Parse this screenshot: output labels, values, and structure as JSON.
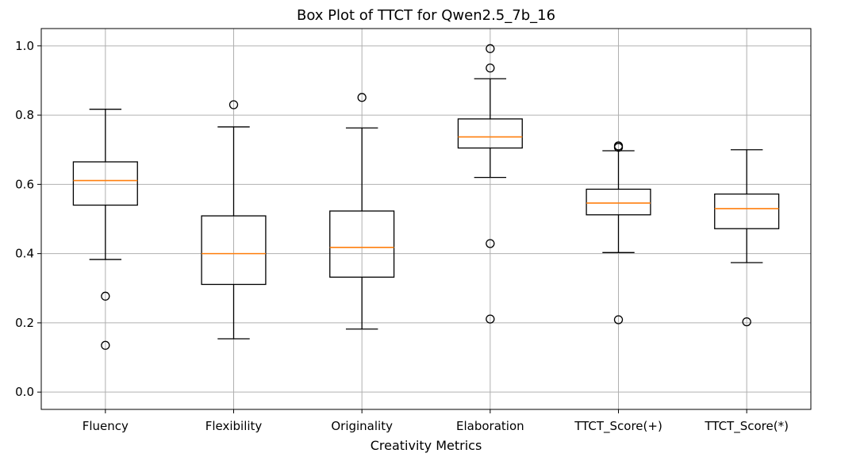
{
  "chart_data": {
    "type": "box",
    "title": "Box Plot of TTCT for Qwen2.5_7b_16",
    "xlabel": "Creativity Metrics",
    "ylabel": "",
    "ylim": [
      -0.05,
      1.05
    ],
    "yticks": [
      0.0,
      0.2,
      0.4,
      0.6,
      0.8,
      1.0
    ],
    "ytick_labels": [
      "0.0",
      "0.2",
      "0.4",
      "0.6",
      "0.8",
      "1.0"
    ],
    "grid": true,
    "categories": [
      "Fluency",
      "Flexibility",
      "Originality",
      "Elaboration",
      "TTCT_Score(+)",
      "TTCT_Score(*)"
    ],
    "boxes": [
      {
        "whisker_low": 0.383,
        "q1": 0.54,
        "median": 0.611,
        "q3": 0.665,
        "whisker_high": 0.817,
        "outliers": [
          0.277,
          0.135
        ]
      },
      {
        "whisker_low": 0.154,
        "q1": 0.311,
        "median": 0.4,
        "q3": 0.509,
        "whisker_high": 0.766,
        "outliers": [
          0.83
        ]
      },
      {
        "whisker_low": 0.182,
        "q1": 0.332,
        "median": 0.418,
        "q3": 0.523,
        "whisker_high": 0.763,
        "outliers": [
          0.851
        ]
      },
      {
        "whisker_low": 0.62,
        "q1": 0.705,
        "median": 0.737,
        "q3": 0.789,
        "whisker_high": 0.905,
        "outliers": [
          0.992,
          0.936,
          0.429,
          0.211
        ]
      },
      {
        "whisker_low": 0.403,
        "q1": 0.512,
        "median": 0.546,
        "q3": 0.586,
        "whisker_high": 0.697,
        "outliers": [
          0.711,
          0.707,
          0.209
        ]
      },
      {
        "whisker_low": 0.374,
        "q1": 0.472,
        "median": 0.53,
        "q3": 0.572,
        "whisker_high": 0.7,
        "outliers": [
          0.203
        ]
      }
    ],
    "colors": {
      "box": "#000000",
      "median": "#ff7f0e",
      "grid": "#b0b0b0"
    }
  }
}
